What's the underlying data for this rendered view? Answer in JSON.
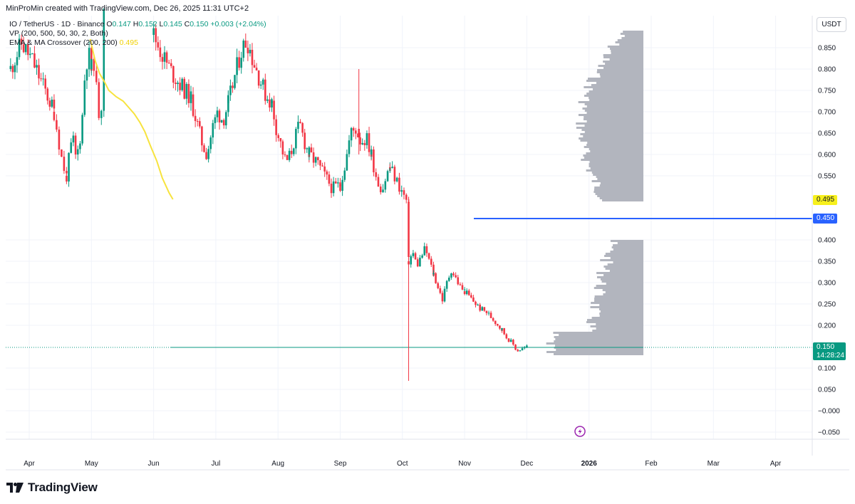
{
  "header": {
    "created_line": "MinProMin created with TradingView.com, Dec 26, 2025 11:31 UTC+2"
  },
  "legend": {
    "symbol_line": {
      "prefix": "IO / TetherUS · 1D · Binance",
      "o_label": "O",
      "o_value": "0.147",
      "h_label": "H",
      "h_value": "0.152",
      "l_label": "L",
      "l_value": "0.145",
      "c_label": "C",
      "c_value": "0.150",
      "change": "+0.003 (+2.04%)"
    },
    "vp_line": "VP (200, 500, 50, 30, 2, Both)",
    "ema_line": {
      "label": "EMA & MA Crossover (200, 200)",
      "value": "0.495"
    }
  },
  "price_axis": {
    "currency_button": "USDT",
    "ticks": [
      "0.850",
      "0.800",
      "0.750",
      "0.700",
      "0.650",
      "0.600",
      "0.550",
      "0.400",
      "0.350",
      "0.300",
      "0.250",
      "0.200",
      "0.100",
      "0.050",
      "−0.000",
      "−0.050"
    ],
    "tags": {
      "ema_value": "0.495",
      "level_value": "0.450",
      "last_price": "0.150",
      "countdown": "14:28:24"
    }
  },
  "time_axis": {
    "labels": [
      "Apr",
      "May",
      "Jun",
      "Jul",
      "Aug",
      "Sep",
      "Oct",
      "Nov",
      "Dec",
      "2026",
      "Feb",
      "Mar",
      "Apr"
    ]
  },
  "branding": {
    "logo_text": "TradingView"
  },
  "colors": {
    "up": "#089981",
    "down": "#f23645",
    "ema": "#f7e33e",
    "level_line": "#2962ff",
    "volume_profile": "#b2b5be",
    "grid": "#f0f3fa"
  },
  "chart_data": {
    "type": "candlestick",
    "symbol": "IO/TetherUS",
    "timeframe": "1D",
    "exchange": "Binance",
    "ylim": [
      -0.06,
      0.89
    ],
    "horizontal_level": 0.45,
    "last_price": 0.15,
    "ema_200": [
      [
        0.98,
        0.87
      ],
      [
        1.06,
        0.82
      ],
      [
        1.13,
        0.79
      ],
      [
        1.21,
        0.77
      ],
      [
        1.28,
        0.75
      ],
      [
        1.4,
        0.735
      ],
      [
        1.51,
        0.725
      ],
      [
        1.6,
        0.71
      ],
      [
        1.69,
        0.695
      ],
      [
        1.78,
        0.675
      ],
      [
        1.86,
        0.653
      ],
      [
        1.95,
        0.62
      ],
      [
        2.05,
        0.585
      ],
      [
        2.14,
        0.545
      ],
      [
        2.25,
        0.51
      ],
      [
        2.31,
        0.495
      ]
    ],
    "segments": [
      {
        "start_month": -0.3,
        "end_month": 0.4,
        "points": [
          0.8,
          0.86,
          0.82,
          0.76,
          0.7
        ]
      },
      {
        "start_month": 0.4,
        "end_month": 0.6,
        "points": [
          0.7,
          0.64,
          0.58,
          0.55
        ]
      },
      {
        "start_month": 0.6,
        "end_month": 1.0,
        "points": [
          0.55,
          0.6,
          0.64,
          0.59,
          0.62,
          0.68,
          0.8,
          0.84,
          0.8
        ]
      },
      {
        "start_month": 1.0,
        "end_month": 1.2,
        "points": [
          0.8,
          0.82,
          0.75,
          0.7,
          0.72,
          0.96
        ]
      },
      {
        "start_month": 2.0,
        "end_month": 2.6,
        "points": [
          0.88,
          0.83,
          0.79,
          0.76,
          0.73
        ]
      },
      {
        "start_month": 2.6,
        "end_month": 3.2,
        "points": [
          0.73,
          0.68,
          0.63,
          0.6,
          0.66,
          0.7,
          0.68,
          0.72
        ]
      },
      {
        "start_month": 3.2,
        "end_month": 3.9,
        "points": [
          0.72,
          0.78,
          0.84,
          0.87,
          0.82,
          0.78,
          0.74,
          0.72
        ]
      },
      {
        "start_month": 3.9,
        "end_month": 4.5,
        "points": [
          0.72,
          0.66,
          0.62,
          0.58,
          0.6,
          0.64,
          0.67,
          0.63,
          0.6
        ]
      },
      {
        "start_month": 4.5,
        "end_month": 5.0,
        "points": [
          0.6,
          0.58,
          0.55,
          0.52,
          0.53
        ]
      },
      {
        "start_month": 5.0,
        "end_month": 5.5,
        "points": [
          0.53,
          0.58,
          0.65,
          0.66,
          0.63,
          0.64,
          0.6
        ]
      },
      {
        "start_month": 5.5,
        "end_month": 5.8,
        "points": [
          0.6,
          0.56,
          0.53,
          0.52,
          0.55,
          0.57
        ]
      },
      {
        "start_month": 5.8,
        "end_month": 6.1,
        "points": [
          0.57,
          0.54,
          0.51,
          0.48
        ]
      },
      {
        "start_month": 6.1,
        "end_month": 6.5,
        "points": [
          0.35,
          0.37,
          0.34,
          0.36,
          0.38,
          0.35,
          0.32
        ]
      },
      {
        "start_month": 6.5,
        "end_month": 7.0,
        "points": [
          0.32,
          0.29,
          0.26,
          0.3,
          0.33,
          0.31,
          0.29,
          0.28
        ]
      },
      {
        "start_month": 7.0,
        "end_month": 7.6,
        "points": [
          0.28,
          0.26,
          0.24,
          0.23,
          0.21,
          0.19
        ]
      },
      {
        "start_month": 7.6,
        "end_month": 8.0,
        "points": [
          0.19,
          0.17,
          0.16,
          0.14,
          0.145,
          0.15
        ]
      }
    ],
    "special_candles": [
      {
        "month": 6.1,
        "open": 0.49,
        "close": 0.36,
        "high": 0.5,
        "low": 0.07
      },
      {
        "month": 5.3,
        "open": 0.66,
        "close": 0.64,
        "high": 0.8,
        "low": 0.6
      }
    ],
    "volume_profile": [
      {
        "price_min": 0.49,
        "price_max": 0.89
      },
      {
        "price_min": 0.13,
        "price_max": 0.4
      }
    ]
  }
}
